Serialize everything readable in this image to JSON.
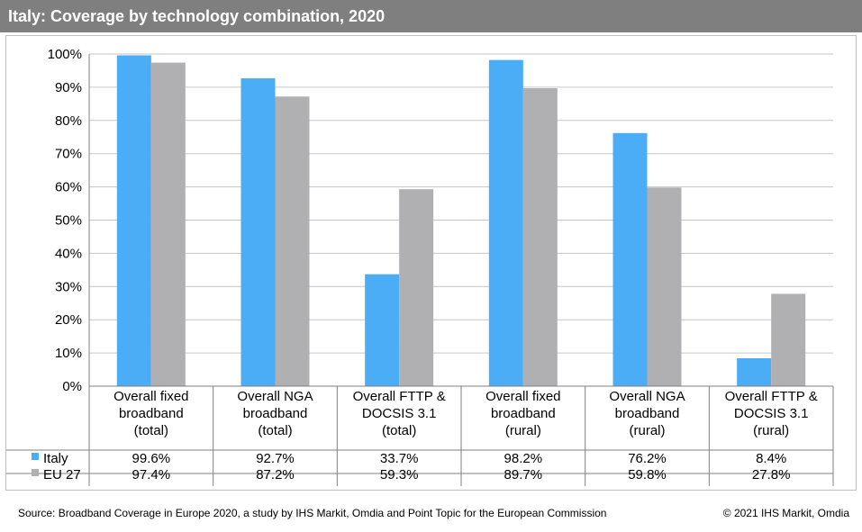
{
  "title": "Italy: Coverage by technology combination, 2020",
  "source": "Source: Broadband Coverage in Europe 2020, a study by IHS Markit, Omdia and Point Topic for the European Commission",
  "copyright": "© 2021 IHS Markit, Omdia",
  "colors": {
    "italy": "#4badf5",
    "eu27": "#b0b0b2",
    "title_bar": "#7f7f7f"
  },
  "chart_data": {
    "type": "bar",
    "categories": [
      [
        "Overall fixed",
        "broadband",
        "(total)"
      ],
      [
        "Overall NGA",
        "broadband",
        "(total)"
      ],
      [
        "Overall FTTP &",
        "DOCSIS 3.1",
        "(total)"
      ],
      [
        "Overall fixed",
        "broadband",
        "(rural)"
      ],
      [
        "Overall NGA",
        "broadband",
        "(rural)"
      ],
      [
        "Overall FTTP &",
        "DOCSIS 3.1",
        "(rural)"
      ]
    ],
    "series": [
      {
        "name": "Italy",
        "values": [
          99.6,
          92.7,
          33.7,
          98.2,
          76.2,
          8.4
        ],
        "labels": [
          "99.6%",
          "92.7%",
          "33.7%",
          "98.2%",
          "76.2%",
          "8.4%"
        ]
      },
      {
        "name": "EU 27",
        "values": [
          97.4,
          87.2,
          59.3,
          89.7,
          59.8,
          27.8
        ],
        "labels": [
          "97.4%",
          "87.2%",
          "59.3%",
          "89.7%",
          "59.8%",
          "27.8%"
        ]
      }
    ],
    "yticks": [
      "0%",
      "10%",
      "20%",
      "30%",
      "40%",
      "50%",
      "60%",
      "70%",
      "80%",
      "90%",
      "100%"
    ],
    "ylim": [
      0,
      100
    ],
    "grid": true,
    "legend": "data-table"
  }
}
